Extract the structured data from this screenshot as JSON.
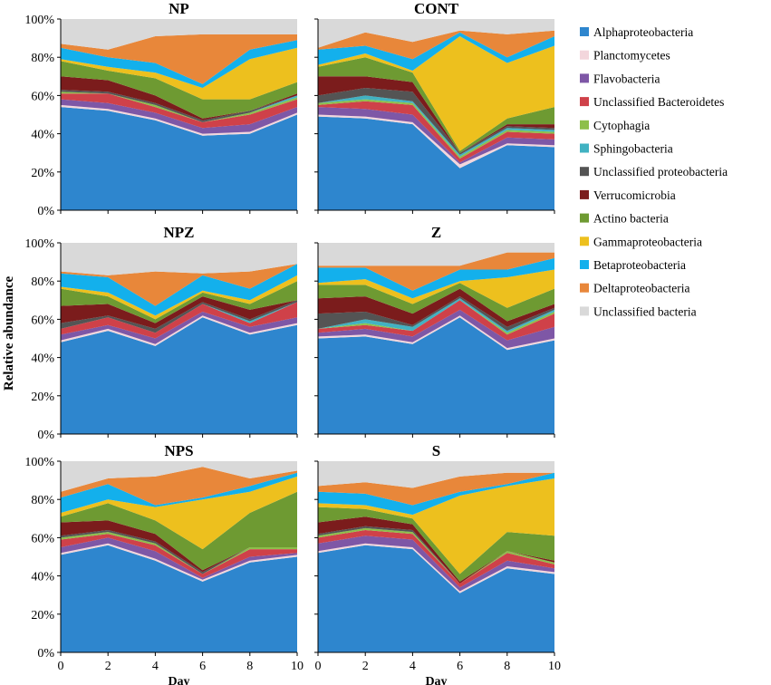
{
  "chart_data": {
    "type": "area",
    "ylabel": "Relative abundance",
    "xlabel": "Day",
    "x": [
      0,
      2,
      4,
      6,
      8,
      10
    ],
    "x_ticks": [
      "0",
      "2",
      "4",
      "6",
      "8",
      "10"
    ],
    "ylim": [
      0,
      100
    ],
    "y_ticks": [
      "0%",
      "20%",
      "40%",
      "60%",
      "80%",
      "100%"
    ],
    "grid": false,
    "legend_position": "right",
    "series_legend": [
      {
        "name": "Alphaproteobacteria",
        "color": "#2E86CE"
      },
      {
        "name": "Planctomycetes",
        "color": "#F3D6DC"
      },
      {
        "name": "Flavobacteria",
        "color": "#7E57A6"
      },
      {
        "name": "Unclassified Bacteroidetes",
        "color": "#CF4149"
      },
      {
        "name": "Cytophagia",
        "color": "#8DBF4B"
      },
      {
        "name": "Sphingobacteria",
        "color": "#41B2C2"
      },
      {
        "name": "Unclassified proteobacteria",
        "color": "#545454"
      },
      {
        "name": "Verrucomicrobia",
        "color": "#7B1C1C"
      },
      {
        "name": "Actino bacteria",
        "color": "#6E9A32"
      },
      {
        "name": "Gammaproteobacteria",
        "color": "#EDC01E"
      },
      {
        "name": "Betaproteobacteria",
        "color": "#13B0EC"
      },
      {
        "name": "Deltaproteobacteria",
        "color": "#E8873A"
      },
      {
        "name": "Unclassified bacteria",
        "color": "#D9D9D9"
      }
    ],
    "panels": [
      {
        "title": "NP",
        "cumulative_top": {
          "Alphaproteobacteria": [
            54,
            52,
            47,
            39,
            40,
            50
          ],
          "Planctomycetes": [
            55,
            53,
            48,
            40,
            41,
            51
          ],
          "Flavobacteria": [
            58,
            56,
            51,
            43,
            45,
            54
          ],
          "Unclassified Bacteroidetes": [
            61,
            61,
            54,
            46,
            50,
            58
          ],
          "Cytophagia": [
            62,
            61,
            55,
            46,
            51,
            59
          ],
          "Sphingobacteria": [
            62,
            61,
            55,
            46,
            51,
            60
          ],
          "Unclassified proteobacteria": [
            63,
            62,
            56,
            47,
            52,
            60
          ],
          "Verrucomicrobia": [
            70,
            68,
            60,
            48,
            52,
            61
          ],
          "Actino bacteria": [
            78,
            73,
            69,
            58,
            58,
            67
          ],
          "Gammaproteobacteria": [
            79,
            75,
            72,
            64,
            79,
            85
          ],
          "Betaproteobacteria": [
            85,
            80,
            77,
            66,
            84,
            89
          ],
          "Deltaproteobacteria": [
            87,
            84,
            91,
            92,
            92,
            92
          ],
          "Unclassified bacteria": [
            100,
            100,
            100,
            100,
            100,
            100
          ]
        }
      },
      {
        "title": "CONT",
        "cumulative_top": {
          "Alphaproteobacteria": [
            49,
            48,
            45,
            22,
            34,
            33
          ],
          "Planctomycetes": [
            50,
            49,
            46,
            24,
            35,
            34
          ],
          "Flavobacteria": [
            54,
            53,
            50,
            25,
            38,
            37
          ],
          "Unclassified Bacteroidetes": [
            55,
            57,
            55,
            27,
            41,
            40
          ],
          "Cytophagia": [
            56,
            58,
            56,
            28,
            42,
            41
          ],
          "Sphingobacteria": [
            56,
            60,
            57,
            29,
            43,
            42
          ],
          "Unclassified proteobacteria": [
            60,
            64,
            62,
            30,
            44,
            43
          ],
          "Verrucomicrobia": [
            70,
            70,
            67,
            30,
            45,
            45
          ],
          "Actino bacteria": [
            75,
            80,
            72,
            31,
            48,
            54
          ],
          "Gammaproteobacteria": [
            76,
            82,
            73,
            91,
            77,
            86
          ],
          "Betaproteobacteria": [
            84,
            86,
            79,
            93,
            80,
            91
          ],
          "Deltaproteobacteria": [
            85,
            93,
            88,
            94,
            92,
            94
          ],
          "Unclassified bacteria": [
            100,
            100,
            100,
            100,
            100,
            100
          ]
        }
      },
      {
        "title": "NPZ",
        "cumulative_top": {
          "Alphaproteobacteria": [
            48,
            54,
            46,
            61,
            52,
            57
          ],
          "Planctomycetes": [
            49,
            55,
            47,
            62,
            53,
            58
          ],
          "Flavobacteria": [
            52,
            57,
            50,
            64,
            56,
            61
          ],
          "Unclassified Bacteroidetes": [
            55,
            61,
            53,
            68,
            58,
            69
          ],
          "Cytophagia": [
            55,
            61,
            53,
            68,
            58,
            69
          ],
          "Sphingobacteria": [
            55,
            61,
            53,
            68,
            59,
            69
          ],
          "Unclassified proteobacteria": [
            58,
            62,
            55,
            69,
            60,
            70
          ],
          "Verrucomicrobia": [
            67,
            68,
            58,
            72,
            65,
            70
          ],
          "Actino bacteria": [
            76,
            72,
            60,
            74,
            68,
            80
          ],
          "Gammaproteobacteria": [
            77,
            74,
            62,
            75,
            70,
            83
          ],
          "Betaproteobacteria": [
            84,
            82,
            67,
            83,
            76,
            89
          ],
          "Deltaproteobacteria": [
            85,
            83,
            85,
            84,
            85,
            89
          ],
          "Unclassified bacteria": [
            100,
            100,
            100,
            100,
            100,
            100
          ]
        }
      },
      {
        "title": "Z",
        "cumulative_top": {
          "Alphaproteobacteria": [
            50,
            51,
            47,
            61,
            44,
            49
          ],
          "Planctomycetes": [
            51,
            52,
            48,
            62,
            45,
            50
          ],
          "Flavobacteria": [
            53,
            55,
            51,
            65,
            49,
            56
          ],
          "Unclassified Bacteroidetes": [
            55,
            57,
            54,
            70,
            52,
            63
          ],
          "Cytophagia": [
            55,
            58,
            54,
            70,
            53,
            64
          ],
          "Sphingobacteria": [
            55,
            60,
            56,
            71,
            54,
            65
          ],
          "Unclassified proteobacteria": [
            63,
            64,
            57,
            72,
            56,
            66
          ],
          "Verrucomicrobia": [
            71,
            72,
            63,
            76,
            59,
            68
          ],
          "Actino bacteria": [
            78,
            78,
            68,
            79,
            66,
            76
          ],
          "Gammaproteobacteria": [
            79,
            81,
            71,
            80,
            82,
            86
          ],
          "Betaproteobacteria": [
            87,
            87,
            75,
            86,
            86,
            92
          ],
          "Deltaproteobacteria": [
            88,
            88,
            88,
            88,
            95,
            95
          ],
          "Unclassified bacteria": [
            100,
            100,
            100,
            100,
            100,
            100
          ]
        }
      },
      {
        "title": "NPS",
        "cumulative_top": {
          "Alphaproteobacteria": [
            51,
            56,
            48,
            37,
            47,
            50
          ],
          "Planctomycetes": [
            52,
            57,
            49,
            38,
            48,
            51
          ],
          "Flavobacteria": [
            55,
            60,
            53,
            39,
            50,
            52
          ],
          "Unclassified Bacteroidetes": [
            59,
            62,
            56,
            41,
            54,
            54
          ],
          "Cytophagia": [
            60,
            63,
            57,
            41,
            55,
            55
          ],
          "Sphingobacteria": [
            60,
            63,
            57,
            41,
            55,
            55
          ],
          "Unclassified proteobacteria": [
            61,
            64,
            58,
            42,
            55,
            55
          ],
          "Verrucomicrobia": [
            68,
            69,
            62,
            43,
            55,
            55
          ],
          "Actino bacteria": [
            71,
            78,
            69,
            54,
            73,
            84
          ],
          "Gammaproteobacteria": [
            73,
            80,
            76,
            80,
            84,
            92
          ],
          "Betaproteobacteria": [
            81,
            88,
            77,
            81,
            87,
            94
          ],
          "Deltaproteobacteria": [
            84,
            91,
            92,
            97,
            91,
            95
          ],
          "Unclassified bacteria": [
            100,
            100,
            100,
            100,
            100,
            100
          ]
        }
      },
      {
        "title": "S",
        "cumulative_top": {
          "Alphaproteobacteria": [
            52,
            56,
            54,
            31,
            44,
            41
          ],
          "Planctomycetes": [
            53,
            57,
            55,
            32,
            45,
            42
          ],
          "Flavobacteria": [
            57,
            61,
            59,
            34,
            48,
            44
          ],
          "Unclassified Bacteroidetes": [
            60,
            64,
            62,
            36,
            52,
            46
          ],
          "Cytophagia": [
            61,
            65,
            63,
            36,
            53,
            47
          ],
          "Sphingobacteria": [
            61,
            65,
            63,
            36,
            53,
            47
          ],
          "Unclassified proteobacteria": [
            62,
            66,
            64,
            36,
            53,
            47
          ],
          "Verrucomicrobia": [
            68,
            71,
            67,
            37,
            53,
            48
          ],
          "Actino bacteria": [
            76,
            75,
            70,
            41,
            63,
            61
          ],
          "Gammaproteobacteria": [
            78,
            77,
            72,
            82,
            87,
            91
          ],
          "Betaproteobacteria": [
            84,
            83,
            77,
            84,
            88,
            94
          ],
          "Deltaproteobacteria": [
            87,
            89,
            86,
            92,
            94,
            94
          ],
          "Unclassified bacteria": [
            100,
            100,
            100,
            100,
            100,
            100
          ]
        }
      }
    ]
  }
}
